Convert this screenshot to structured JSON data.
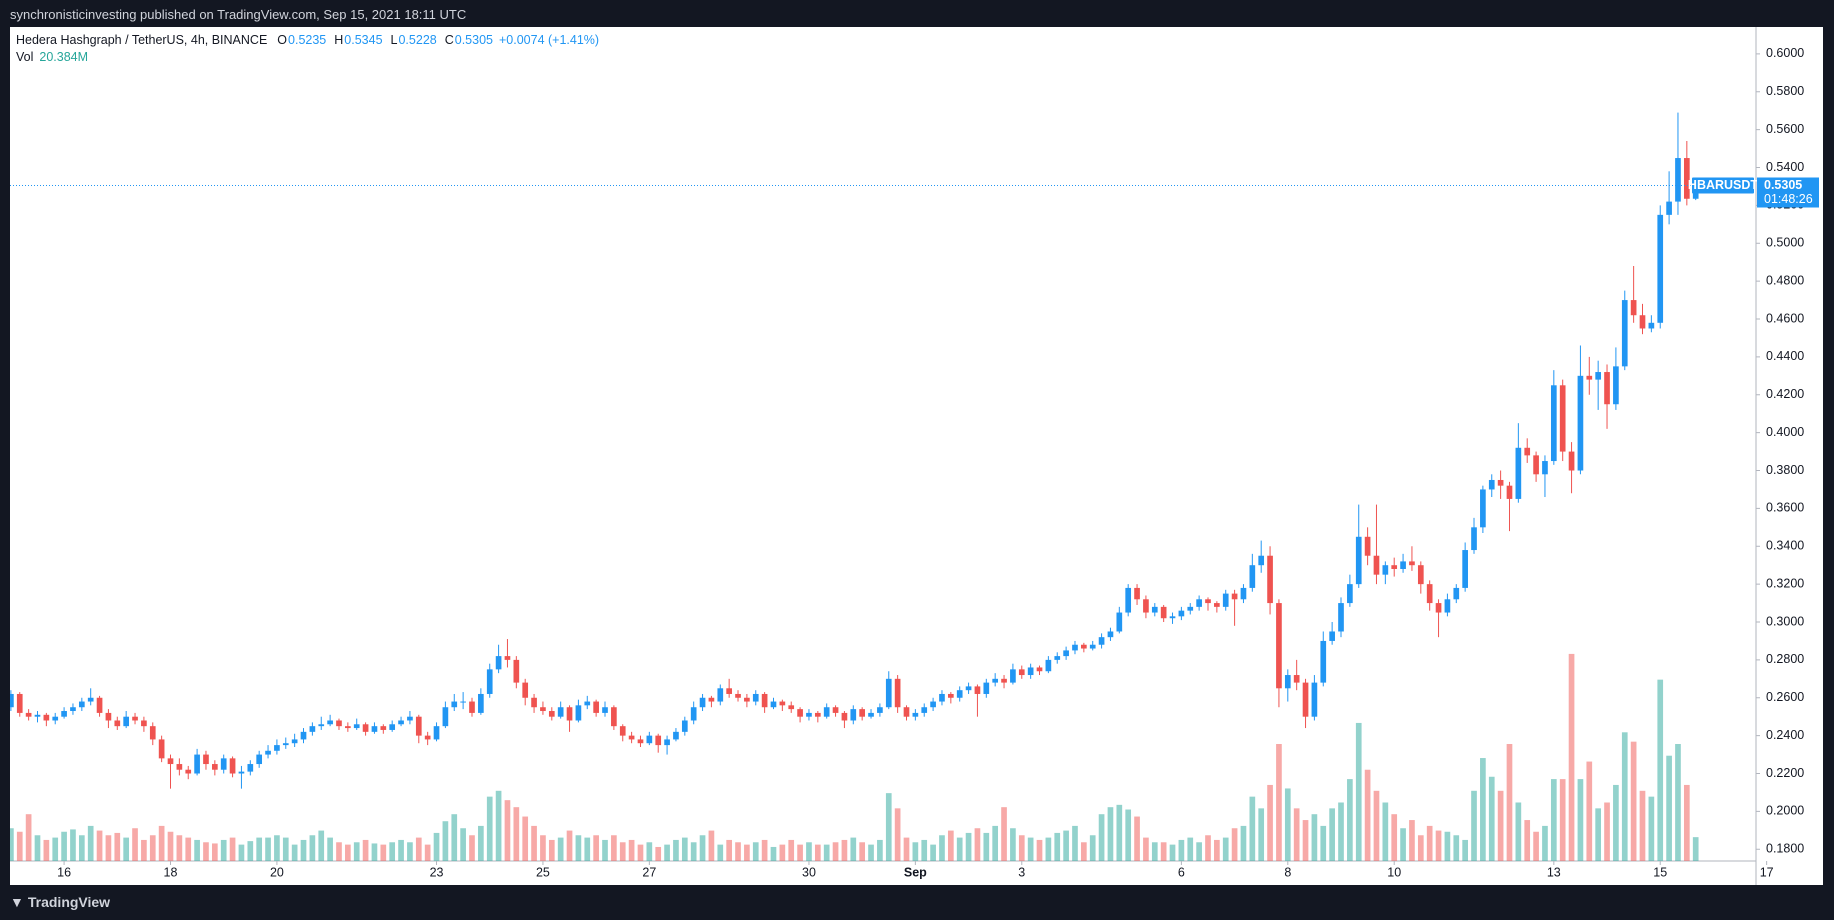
{
  "header": {
    "published": "synchronisticinvesting published on TradingView.com, Sep 15, 2021 18:11 UTC"
  },
  "footer": {
    "brand": "TradingView"
  },
  "chart_data": {
    "type": "candlestick",
    "title": "Hedera Hashgraph / TetherUS, 4h, BINANCE",
    "legend_keys": [
      "O",
      "H",
      "L",
      "C"
    ],
    "change": "+0.0074 (+1.41%)",
    "volume_key": "Vol",
    "volume_label": "20.384M",
    "symbol": "HBARUSDT",
    "countdown": "01:48:26",
    "up_color": "#2196f3",
    "down_color": "#ef5350",
    "volume_up_color": "#26a69a",
    "volume_down_color": "#ef5350",
    "grid": false,
    "ylim": [
      0.1738,
      0.6142
    ],
    "yticks": [
      {
        "value": 0.6,
        "label": "0.6000"
      },
      {
        "value": 0.58,
        "label": "0.5800"
      },
      {
        "value": 0.56,
        "label": "0.5600"
      },
      {
        "value": 0.54,
        "label": "0.5400"
      },
      {
        "value": 0.52,
        "label": "0.5200"
      },
      {
        "value": 0.5,
        "label": "0.5000"
      },
      {
        "value": 0.48,
        "label": "0.4800"
      },
      {
        "value": 0.46,
        "label": "0.4600"
      },
      {
        "value": 0.44,
        "label": "0.4400"
      },
      {
        "value": 0.42,
        "label": "0.4200"
      },
      {
        "value": 0.4,
        "label": "0.4000"
      },
      {
        "value": 0.38,
        "label": "0.3800"
      },
      {
        "value": 0.36,
        "label": "0.3600"
      },
      {
        "value": 0.34,
        "label": "0.3400"
      },
      {
        "value": 0.32,
        "label": "0.3200"
      },
      {
        "value": 0.3,
        "label": "0.3000"
      },
      {
        "value": 0.28,
        "label": "0.2800"
      },
      {
        "value": 0.26,
        "label": "0.2600"
      },
      {
        "value": 0.24,
        "label": "0.2400"
      },
      {
        "value": 0.22,
        "label": "0.2200"
      },
      {
        "value": 0.2,
        "label": "0.2000"
      },
      {
        "value": 0.18,
        "label": "0.1800"
      }
    ],
    "xlim": [
      -0.1,
      196.8
    ],
    "xticks": [
      {
        "value": 6,
        "label": "16"
      },
      {
        "value": 18,
        "label": "18"
      },
      {
        "value": 30,
        "label": "20"
      },
      {
        "value": 48,
        "label": "23"
      },
      {
        "value": 60,
        "label": "25"
      },
      {
        "value": 72,
        "label": "27"
      },
      {
        "value": 90,
        "label": "30"
      },
      {
        "value": 102,
        "label": "Sep"
      },
      {
        "value": 114,
        "label": "3"
      },
      {
        "value": 132,
        "label": "6"
      },
      {
        "value": 144,
        "label": "8"
      },
      {
        "value": 156,
        "label": "10"
      },
      {
        "value": 174,
        "label": "13"
      },
      {
        "value": 186,
        "label": "15"
      },
      {
        "value": 198,
        "label": "17"
      }
    ],
    "ohlc": [
      [
        0.255,
        0.264,
        0.253,
        0.262
      ],
      [
        0.262,
        0.263,
        0.25,
        0.252
      ],
      [
        0.252,
        0.254,
        0.248,
        0.25
      ],
      [
        0.25,
        0.253,
        0.247,
        0.251
      ],
      [
        0.251,
        0.252,
        0.245,
        0.248
      ],
      [
        0.248,
        0.252,
        0.246,
        0.25
      ],
      [
        0.25,
        0.255,
        0.249,
        0.253
      ],
      [
        0.253,
        0.257,
        0.251,
        0.255
      ],
      [
        0.255,
        0.26,
        0.253,
        0.258
      ],
      [
        0.258,
        0.265,
        0.256,
        0.26
      ],
      [
        0.26,
        0.261,
        0.25,
        0.252
      ],
      [
        0.252,
        0.254,
        0.244,
        0.248
      ],
      [
        0.248,
        0.25,
        0.243,
        0.245
      ],
      [
        0.245,
        0.253,
        0.244,
        0.25
      ],
      [
        0.25,
        0.252,
        0.246,
        0.248
      ],
      [
        0.248,
        0.25,
        0.242,
        0.245
      ],
      [
        0.245,
        0.247,
        0.235,
        0.238
      ],
      [
        0.238,
        0.24,
        0.226,
        0.228
      ],
      [
        0.228,
        0.23,
        0.212,
        0.225
      ],
      [
        0.225,
        0.228,
        0.219,
        0.222
      ],
      [
        0.222,
        0.224,
        0.217,
        0.22
      ],
      [
        0.22,
        0.233,
        0.219,
        0.23
      ],
      [
        0.23,
        0.232,
        0.222,
        0.225
      ],
      [
        0.225,
        0.227,
        0.219,
        0.222
      ],
      [
        0.222,
        0.23,
        0.22,
        0.228
      ],
      [
        0.228,
        0.229,
        0.218,
        0.22
      ],
      [
        0.22,
        0.224,
        0.212,
        0.221
      ],
      [
        0.221,
        0.227,
        0.219,
        0.225
      ],
      [
        0.225,
        0.232,
        0.223,
        0.23
      ],
      [
        0.23,
        0.235,
        0.228,
        0.232
      ],
      [
        0.232,
        0.238,
        0.23,
        0.235
      ],
      [
        0.235,
        0.239,
        0.233,
        0.236
      ],
      [
        0.236,
        0.241,
        0.234,
        0.238
      ],
      [
        0.238,
        0.244,
        0.236,
        0.242
      ],
      [
        0.242,
        0.247,
        0.24,
        0.245
      ],
      [
        0.245,
        0.25,
        0.243,
        0.246
      ],
      [
        0.246,
        0.251,
        0.245,
        0.248
      ],
      [
        0.248,
        0.249,
        0.243,
        0.245
      ],
      [
        0.245,
        0.247,
        0.242,
        0.244
      ],
      [
        0.244,
        0.249,
        0.243,
        0.246
      ],
      [
        0.246,
        0.247,
        0.24,
        0.242
      ],
      [
        0.242,
        0.247,
        0.241,
        0.245
      ],
      [
        0.245,
        0.246,
        0.241,
        0.243
      ],
      [
        0.243,
        0.248,
        0.242,
        0.246
      ],
      [
        0.246,
        0.25,
        0.245,
        0.248
      ],
      [
        0.248,
        0.253,
        0.246,
        0.25
      ],
      [
        0.25,
        0.251,
        0.236,
        0.24
      ],
      [
        0.24,
        0.242,
        0.235,
        0.238
      ],
      [
        0.238,
        0.247,
        0.237,
        0.245
      ],
      [
        0.245,
        0.258,
        0.244,
        0.255
      ],
      [
        0.255,
        0.262,
        0.253,
        0.258
      ],
      [
        0.258,
        0.263,
        0.254,
        0.258
      ],
      [
        0.258,
        0.26,
        0.25,
        0.252
      ],
      [
        0.252,
        0.265,
        0.251,
        0.262
      ],
      [
        0.262,
        0.278,
        0.26,
        0.275
      ],
      [
        0.275,
        0.288,
        0.273,
        0.282
      ],
      [
        0.282,
        0.291,
        0.276,
        0.28
      ],
      [
        0.28,
        0.282,
        0.265,
        0.268
      ],
      [
        0.268,
        0.27,
        0.256,
        0.26
      ],
      [
        0.26,
        0.262,
        0.252,
        0.255
      ],
      [
        0.255,
        0.258,
        0.251,
        0.253
      ],
      [
        0.253,
        0.255,
        0.248,
        0.25
      ],
      [
        0.25,
        0.258,
        0.249,
        0.255
      ],
      [
        0.255,
        0.256,
        0.242,
        0.248
      ],
      [
        0.248,
        0.259,
        0.247,
        0.256
      ],
      [
        0.256,
        0.261,
        0.254,
        0.258
      ],
      [
        0.258,
        0.259,
        0.25,
        0.252
      ],
      [
        0.252,
        0.258,
        0.25,
        0.255
      ],
      [
        0.255,
        0.256,
        0.243,
        0.245
      ],
      [
        0.245,
        0.246,
        0.237,
        0.24
      ],
      [
        0.24,
        0.242,
        0.236,
        0.238
      ],
      [
        0.238,
        0.24,
        0.234,
        0.236
      ],
      [
        0.236,
        0.242,
        0.235,
        0.24
      ],
      [
        0.24,
        0.241,
        0.231,
        0.235
      ],
      [
        0.235,
        0.24,
        0.23,
        0.238
      ],
      [
        0.238,
        0.244,
        0.237,
        0.242
      ],
      [
        0.242,
        0.25,
        0.24,
        0.248
      ],
      [
        0.248,
        0.258,
        0.246,
        0.255
      ],
      [
        0.255,
        0.262,
        0.253,
        0.26
      ],
      [
        0.26,
        0.261,
        0.255,
        0.258
      ],
      [
        0.258,
        0.267,
        0.256,
        0.265
      ],
      [
        0.265,
        0.27,
        0.26,
        0.262
      ],
      [
        0.262,
        0.264,
        0.258,
        0.26
      ],
      [
        0.26,
        0.262,
        0.255,
        0.258
      ],
      [
        0.258,
        0.264,
        0.256,
        0.262
      ],
      [
        0.262,
        0.263,
        0.252,
        0.255
      ],
      [
        0.255,
        0.26,
        0.254,
        0.258
      ],
      [
        0.258,
        0.259,
        0.253,
        0.256
      ],
      [
        0.256,
        0.258,
        0.252,
        0.254
      ],
      [
        0.254,
        0.255,
        0.247,
        0.25
      ],
      [
        0.25,
        0.254,
        0.248,
        0.252
      ],
      [
        0.252,
        0.253,
        0.247,
        0.25
      ],
      [
        0.25,
        0.257,
        0.249,
        0.255
      ],
      [
        0.255,
        0.256,
        0.25,
        0.252
      ],
      [
        0.252,
        0.253,
        0.244,
        0.248
      ],
      [
        0.248,
        0.256,
        0.246,
        0.254
      ],
      [
        0.254,
        0.255,
        0.248,
        0.25
      ],
      [
        0.25,
        0.254,
        0.249,
        0.252
      ],
      [
        0.252,
        0.257,
        0.25,
        0.255
      ],
      [
        0.255,
        0.274,
        0.254,
        0.27
      ],
      [
        0.27,
        0.272,
        0.252,
        0.255
      ],
      [
        0.255,
        0.256,
        0.248,
        0.25
      ],
      [
        0.25,
        0.254,
        0.248,
        0.252
      ],
      [
        0.252,
        0.257,
        0.25,
        0.255
      ],
      [
        0.255,
        0.26,
        0.253,
        0.258
      ],
      [
        0.258,
        0.264,
        0.256,
        0.262
      ],
      [
        0.262,
        0.263,
        0.257,
        0.26
      ],
      [
        0.26,
        0.266,
        0.258,
        0.264
      ],
      [
        0.264,
        0.268,
        0.262,
        0.266
      ],
      [
        0.266,
        0.267,
        0.25,
        0.262
      ],
      [
        0.262,
        0.27,
        0.26,
        0.268
      ],
      [
        0.268,
        0.273,
        0.266,
        0.27
      ],
      [
        0.27,
        0.272,
        0.265,
        0.268
      ],
      [
        0.268,
        0.278,
        0.267,
        0.275
      ],
      [
        0.275,
        0.277,
        0.27,
        0.272
      ],
      [
        0.272,
        0.278,
        0.27,
        0.276
      ],
      [
        0.276,
        0.277,
        0.272,
        0.274
      ],
      [
        0.274,
        0.282,
        0.273,
        0.28
      ],
      [
        0.28,
        0.284,
        0.278,
        0.282
      ],
      [
        0.282,
        0.287,
        0.28,
        0.285
      ],
      [
        0.285,
        0.29,
        0.283,
        0.288
      ],
      [
        0.288,
        0.289,
        0.284,
        0.286
      ],
      [
        0.286,
        0.29,
        0.285,
        0.288
      ],
      [
        0.288,
        0.294,
        0.286,
        0.292
      ],
      [
        0.292,
        0.297,
        0.29,
        0.295
      ],
      [
        0.295,
        0.308,
        0.294,
        0.305
      ],
      [
        0.305,
        0.32,
        0.303,
        0.318
      ],
      [
        0.318,
        0.32,
        0.309,
        0.312
      ],
      [
        0.312,
        0.314,
        0.302,
        0.305
      ],
      [
        0.305,
        0.31,
        0.303,
        0.308
      ],
      [
        0.308,
        0.309,
        0.3,
        0.302
      ],
      [
        0.302,
        0.305,
        0.299,
        0.303
      ],
      [
        0.303,
        0.308,
        0.301,
        0.306
      ],
      [
        0.306,
        0.31,
        0.304,
        0.308
      ],
      [
        0.308,
        0.314,
        0.306,
        0.312
      ],
      [
        0.312,
        0.313,
        0.306,
        0.31
      ],
      [
        0.31,
        0.311,
        0.305,
        0.308
      ],
      [
        0.308,
        0.317,
        0.306,
        0.315
      ],
      [
        0.315,
        0.317,
        0.298,
        0.312
      ],
      [
        0.312,
        0.32,
        0.31,
        0.318
      ],
      [
        0.318,
        0.336,
        0.316,
        0.33
      ],
      [
        0.33,
        0.343,
        0.326,
        0.335
      ],
      [
        0.335,
        0.34,
        0.304,
        0.31
      ],
      [
        0.31,
        0.312,
        0.255,
        0.265
      ],
      [
        0.265,
        0.275,
        0.258,
        0.272
      ],
      [
        0.272,
        0.28,
        0.264,
        0.268
      ],
      [
        0.268,
        0.27,
        0.244,
        0.25
      ],
      [
        0.25,
        0.272,
        0.248,
        0.268
      ],
      [
        0.268,
        0.295,
        0.266,
        0.29
      ],
      [
        0.29,
        0.3,
        0.288,
        0.295
      ],
      [
        0.295,
        0.313,
        0.292,
        0.31
      ],
      [
        0.31,
        0.325,
        0.308,
        0.32
      ],
      [
        0.32,
        0.362,
        0.318,
        0.345
      ],
      [
        0.345,
        0.35,
        0.33,
        0.335
      ],
      [
        0.335,
        0.362,
        0.32,
        0.325
      ],
      [
        0.325,
        0.332,
        0.32,
        0.33
      ],
      [
        0.33,
        0.334,
        0.324,
        0.328
      ],
      [
        0.328,
        0.336,
        0.326,
        0.332
      ],
      [
        0.332,
        0.34,
        0.327,
        0.33
      ],
      [
        0.33,
        0.332,
        0.315,
        0.32
      ],
      [
        0.32,
        0.322,
        0.306,
        0.31
      ],
      [
        0.31,
        0.312,
        0.292,
        0.305
      ],
      [
        0.305,
        0.315,
        0.303,
        0.312
      ],
      [
        0.312,
        0.32,
        0.31,
        0.318
      ],
      [
        0.318,
        0.342,
        0.316,
        0.338
      ],
      [
        0.338,
        0.355,
        0.336,
        0.35
      ],
      [
        0.35,
        0.372,
        0.347,
        0.37
      ],
      [
        0.37,
        0.378,
        0.366,
        0.375
      ],
      [
        0.375,
        0.38,
        0.365,
        0.372
      ],
      [
        0.372,
        0.374,
        0.348,
        0.365
      ],
      [
        0.365,
        0.405,
        0.363,
        0.392
      ],
      [
        0.392,
        0.397,
        0.384,
        0.388
      ],
      [
        0.388,
        0.39,
        0.374,
        0.378
      ],
      [
        0.378,
        0.388,
        0.366,
        0.385
      ],
      [
        0.385,
        0.433,
        0.383,
        0.425
      ],
      [
        0.425,
        0.428,
        0.385,
        0.39
      ],
      [
        0.39,
        0.395,
        0.368,
        0.38
      ],
      [
        0.38,
        0.446,
        0.378,
        0.43
      ],
      [
        0.43,
        0.44,
        0.42,
        0.428
      ],
      [
        0.428,
        0.438,
        0.412,
        0.432
      ],
      [
        0.432,
        0.436,
        0.402,
        0.415
      ],
      [
        0.415,
        0.445,
        0.412,
        0.435
      ],
      [
        0.435,
        0.475,
        0.433,
        0.47
      ],
      [
        0.47,
        0.488,
        0.458,
        0.462
      ],
      [
        0.462,
        0.468,
        0.452,
        0.455
      ],
      [
        0.455,
        0.462,
        0.453,
        0.458
      ],
      [
        0.458,
        0.52,
        0.455,
        0.515
      ],
      [
        0.515,
        0.538,
        0.51,
        0.522
      ],
      [
        0.522,
        0.569,
        0.515,
        0.545
      ],
      [
        0.545,
        0.554,
        0.52,
        0.5235
      ],
      [
        0.5235,
        0.5345,
        0.5228,
        0.5305
      ]
    ],
    "volume": [
      28,
      25,
      40,
      22,
      18,
      20,
      25,
      27,
      22,
      30,
      26,
      22,
      24,
      20,
      28,
      18,
      22,
      30,
      25,
      22,
      20,
      18,
      16,
      15,
      18,
      20,
      14,
      17,
      20,
      20,
      22,
      20,
      14,
      18,
      22,
      26,
      20,
      16,
      14,
      16,
      18,
      15,
      14,
      16,
      18,
      16,
      20,
      14,
      24,
      34,
      40,
      28,
      22,
      30,
      55,
      60,
      52,
      46,
      38,
      30,
      22,
      18,
      20,
      26,
      22,
      20,
      22,
      18,
      22,
      16,
      18,
      14,
      16,
      12,
      14,
      18,
      20,
      16,
      22,
      26,
      14,
      18,
      16,
      14,
      16,
      18,
      12,
      14,
      18,
      14,
      16,
      14,
      14,
      16,
      18,
      20,
      16,
      14,
      18,
      58,
      45,
      20,
      16,
      18,
      14,
      22,
      26,
      20,
      24,
      28,
      24,
      30,
      46,
      28,
      22,
      20,
      18,
      20,
      24,
      26,
      30,
      16,
      22,
      40,
      46,
      48,
      44,
      38,
      20,
      16,
      16,
      14,
      18,
      20,
      16,
      22,
      18,
      20,
      28,
      30,
      55,
      45,
      65,
      100,
      62,
      45,
      35,
      40,
      30,
      45,
      50,
      70,
      118,
      78,
      60,
      50,
      40,
      28,
      35,
      22,
      30,
      26,
      25,
      22,
      18,
      60,
      88,
      72,
      60,
      100,
      50,
      35,
      25,
      30,
      70,
      70,
      177,
      70,
      85,
      45,
      50,
      65,
      110,
      102,
      60,
      55,
      155,
      90,
      100,
      65,
      20.384
    ]
  }
}
